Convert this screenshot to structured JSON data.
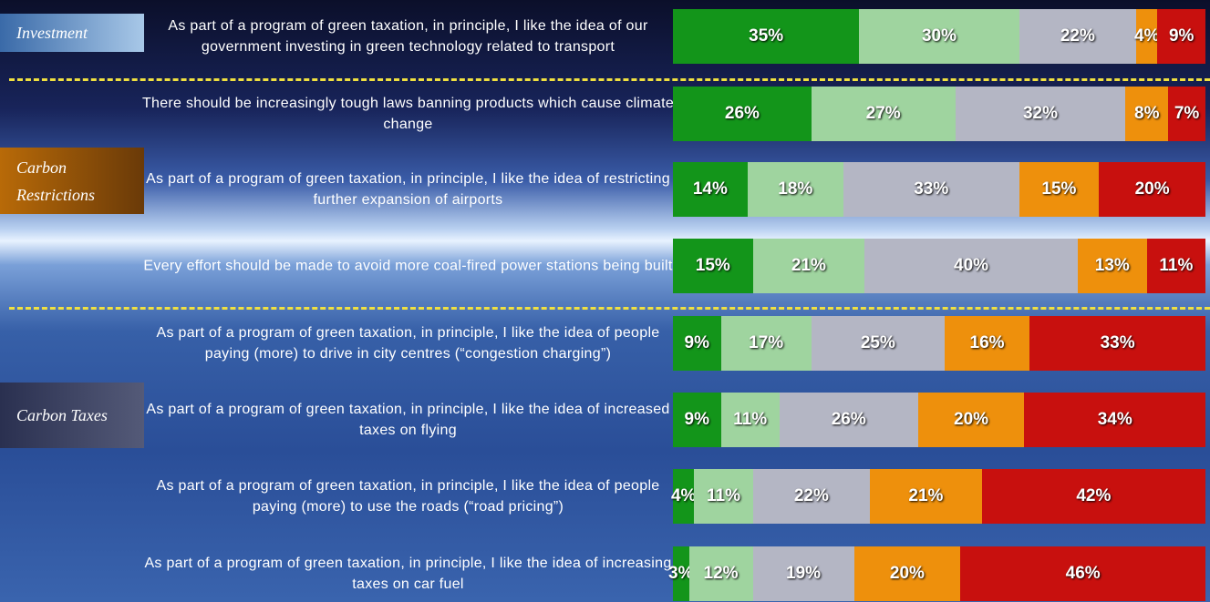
{
  "chart_data": {
    "type": "stacked_bar_horizontal",
    "groups": [
      "Investment",
      "Carbon Restrictions",
      "Carbon Taxes"
    ],
    "categories": [
      "As part of a program of green taxation, in principle, I like the idea of our government investing in green technology related to transport",
      "There should be increasingly tough laws banning products which cause climate change",
      "As part of a program of green taxation, in principle, I like the idea of restricting further expansion of airports",
      "Every effort should be made to avoid more coal-fired power stations being built",
      "As part of a program of green taxation, in principle, I like the idea of people paying (more) to drive in city centres (“congestion charging”)",
      "As part of a program of green taxation, in principle, I like the idea of increased taxes on flying",
      "As part of a program of green taxation, in principle, I like the idea of people paying (more) to use the roads (“road pricing”)",
      "As part of a program of green taxation, in principle, I like the idea of increasing taxes on car fuel"
    ],
    "series": [
      {
        "color": "#13951a",
        "values": [
          35,
          26,
          14,
          15,
          9,
          9,
          4,
          3
        ],
        "value_labels": [
          "35%",
          "26%",
          "14%",
          "15%",
          "9%",
          "9%",
          "4%",
          "3%"
        ]
      },
      {
        "color": "#9fd49f",
        "values": [
          30,
          27,
          18,
          21,
          17,
          11,
          11,
          12
        ],
        "value_labels": [
          "30%",
          "27%",
          "18%",
          "21%",
          "17%",
          "11%",
          "11%",
          "12%"
        ]
      },
      {
        "color": "#b4b6c4",
        "values": [
          22,
          32,
          33,
          40,
          25,
          26,
          22,
          19
        ],
        "value_labels": [
          "22%",
          "32%",
          "33%",
          "40%",
          "25%",
          "26%",
          "22%",
          "19%"
        ]
      },
      {
        "color": "#ee900c",
        "values": [
          4,
          8,
          15,
          13,
          16,
          20,
          21,
          20
        ],
        "value_labels": [
          "4%",
          "8%",
          "15%",
          "13%",
          "16%",
          "20%",
          "21%",
          "20%"
        ]
      },
      {
        "color": "#c8100e",
        "values": [
          9,
          7,
          20,
          11,
          33,
          34,
          42,
          46
        ],
        "value_labels": [
          "9%",
          "7%",
          "20%",
          "11%",
          "33%",
          "34%",
          "42%",
          "46%"
        ]
      }
    ]
  }
}
